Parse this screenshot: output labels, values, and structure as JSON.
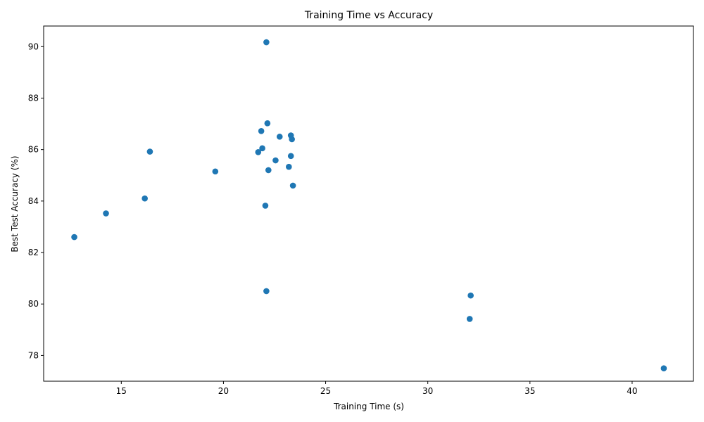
{
  "chart_data": {
    "type": "scatter",
    "title": "Training Time vs Accuracy",
    "xlabel": "Training Time (s)",
    "ylabel": "Best Test Accuracy (%)",
    "xlim": [
      11.2,
      43.0
    ],
    "ylim": [
      77.0,
      90.8
    ],
    "xticks": [
      15,
      20,
      25,
      30,
      35,
      40
    ],
    "yticks": [
      78,
      80,
      82,
      84,
      86,
      88,
      90
    ],
    "grid": false,
    "legend": "none",
    "color": "#1f77b4",
    "points": [
      {
        "x": 12.7,
        "y": 82.6
      },
      {
        "x": 14.25,
        "y": 83.52
      },
      {
        "x": 16.15,
        "y": 84.1
      },
      {
        "x": 16.4,
        "y": 85.92
      },
      {
        "x": 19.6,
        "y": 85.15
      },
      {
        "x": 21.7,
        "y": 85.9
      },
      {
        "x": 21.85,
        "y": 86.72
      },
      {
        "x": 21.9,
        "y": 86.05
      },
      {
        "x": 22.05,
        "y": 83.82
      },
      {
        "x": 22.1,
        "y": 80.5
      },
      {
        "x": 22.1,
        "y": 90.17
      },
      {
        "x": 22.15,
        "y": 87.02
      },
      {
        "x": 22.2,
        "y": 85.2
      },
      {
        "x": 22.55,
        "y": 85.58
      },
      {
        "x": 22.75,
        "y": 86.5
      },
      {
        "x": 23.2,
        "y": 85.33
      },
      {
        "x": 23.3,
        "y": 85.75
      },
      {
        "x": 23.3,
        "y": 86.55
      },
      {
        "x": 23.35,
        "y": 86.4
      },
      {
        "x": 23.4,
        "y": 84.6
      },
      {
        "x": 32.05,
        "y": 79.42
      },
      {
        "x": 32.1,
        "y": 80.33
      },
      {
        "x": 41.55,
        "y": 77.5
      }
    ]
  }
}
